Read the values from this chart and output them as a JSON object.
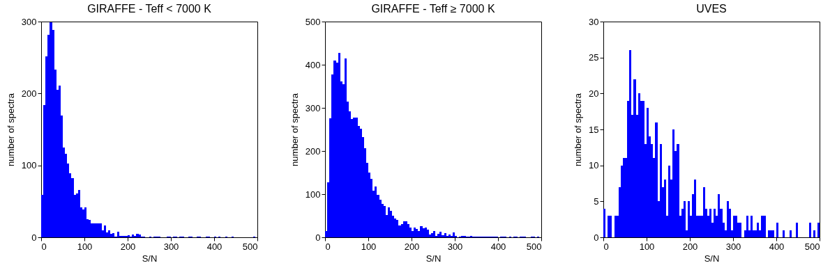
{
  "chart_data": [
    {
      "type": "histogram",
      "title": "GIRAFFE - Teff < 7000 K",
      "xlabel": "S/N",
      "ylabel": "number of spectra",
      "color": "#0000ff",
      "xlim": [
        0,
        500
      ],
      "xticks": [
        0,
        100,
        200,
        300,
        400,
        500
      ],
      "ylim": [
        0,
        300
      ],
      "yticks": [
        0,
        100,
        200,
        300
      ],
      "bins": [
        0,
        5,
        10,
        15,
        20,
        25,
        30,
        35,
        40,
        45,
        50,
        55,
        60,
        65,
        70,
        75,
        80,
        85,
        90,
        95,
        100,
        105,
        110,
        115,
        120,
        125,
        130,
        135,
        140,
        145,
        150,
        155,
        160,
        165,
        170,
        175,
        180,
        185,
        190,
        195,
        200,
        205,
        210,
        215,
        220,
        225,
        230,
        235,
        240,
        245,
        250,
        255,
        260,
        265,
        270,
        275,
        280,
        285,
        290,
        295,
        300,
        305,
        310,
        315,
        320,
        325,
        330,
        335,
        340,
        345,
        350,
        355,
        360,
        365,
        370,
        375,
        380,
        385,
        390,
        395,
        400,
        405,
        410,
        415,
        420,
        425,
        430,
        435,
        440,
        445,
        450,
        455,
        460,
        465,
        470,
        475,
        480,
        485,
        490,
        495,
        500
      ],
      "values": [
        59,
        184,
        252,
        282,
        299,
        288,
        233,
        205,
        211,
        169,
        125,
        116,
        103,
        89,
        82,
        59,
        61,
        66,
        42,
        39,
        42,
        25,
        24,
        19,
        19,
        19,
        19,
        19,
        10,
        16,
        7,
        10,
        5,
        6,
        1,
        8,
        2,
        2,
        2,
        2,
        3,
        1,
        4,
        2,
        5,
        4,
        1,
        1,
        0,
        0,
        1,
        0,
        1,
        1,
        1,
        0,
        0,
        0,
        1,
        1,
        0,
        1,
        1,
        0,
        1,
        1,
        0,
        0,
        1,
        1,
        0,
        0,
        1,
        1,
        0,
        0,
        1,
        1,
        0,
        0,
        1,
        0,
        1,
        0,
        0,
        1,
        0,
        0,
        1,
        0,
        0,
        0,
        0,
        0,
        0,
        0,
        0,
        0,
        1,
        0
      ]
    },
    {
      "type": "histogram",
      "title": "GIRAFFE - Teff ≥ 7000 K",
      "xlabel": "S/N",
      "ylabel": "number of spectra",
      "color": "#0000ff",
      "xlim": [
        0,
        500
      ],
      "xticks": [
        0,
        100,
        200,
        300,
        400,
        500
      ],
      "ylim": [
        0,
        500
      ],
      "yticks": [
        0,
        100,
        200,
        300,
        400,
        500
      ],
      "bins": [
        0,
        5,
        10,
        15,
        20,
        25,
        30,
        35,
        40,
        45,
        50,
        55,
        60,
        65,
        70,
        75,
        80,
        85,
        90,
        95,
        100,
        105,
        110,
        115,
        120,
        125,
        130,
        135,
        140,
        145,
        150,
        155,
        160,
        165,
        170,
        175,
        180,
        185,
        190,
        195,
        200,
        205,
        210,
        215,
        220,
        225,
        230,
        235,
        240,
        245,
        250,
        255,
        260,
        265,
        270,
        275,
        280,
        285,
        290,
        295,
        300,
        305,
        310,
        315,
        320,
        325,
        330,
        335,
        340,
        345,
        350,
        355,
        360,
        365,
        370,
        375,
        380,
        385,
        390,
        395,
        400,
        405,
        410,
        415,
        420,
        425,
        430,
        435,
        440,
        445,
        450,
        455,
        460,
        465,
        470,
        475,
        480,
        485,
        490,
        495,
        500
      ],
      "values": [
        15,
        127,
        276,
        377,
        409,
        405,
        427,
        361,
        355,
        415,
        315,
        292,
        275,
        278,
        278,
        258,
        252,
        233,
        206,
        172,
        150,
        135,
        108,
        117,
        99,
        87,
        78,
        72,
        52,
        70,
        61,
        50,
        44,
        41,
        28,
        31,
        37,
        37,
        31,
        23,
        15,
        23,
        20,
        14,
        26,
        21,
        23,
        17,
        6,
        10,
        14,
        4,
        8,
        13,
        5,
        9,
        4,
        6,
        4,
        11,
        4,
        0,
        2,
        3,
        3,
        1,
        2,
        3,
        2,
        2,
        1,
        2,
        1,
        1,
        2,
        2,
        1,
        1,
        1,
        2,
        0,
        1,
        1,
        1,
        0,
        1,
        0,
        1,
        1,
        0,
        1,
        1,
        1,
        0,
        0,
        1,
        1,
        0,
        1,
        0
      ]
    },
    {
      "type": "histogram",
      "title": "UVES",
      "xlabel": "S/N",
      "ylabel": "number of spectra",
      "color": "#0000ff",
      "xlim": [
        0,
        500
      ],
      "xticks": [
        0,
        100,
        200,
        300,
        400,
        500
      ],
      "ylim": [
        0,
        30
      ],
      "yticks": [
        0,
        5,
        10,
        15,
        20,
        25,
        30
      ],
      "bins": [
        0,
        5,
        10,
        15,
        20,
        25,
        30,
        35,
        40,
        45,
        50,
        55,
        60,
        65,
        70,
        75,
        80,
        85,
        90,
        95,
        100,
        105,
        110,
        115,
        120,
        125,
        130,
        135,
        140,
        145,
        150,
        155,
        160,
        165,
        170,
        175,
        180,
        185,
        190,
        195,
        200,
        205,
        210,
        215,
        220,
        225,
        230,
        235,
        240,
        245,
        250,
        255,
        260,
        265,
        270,
        275,
        280,
        285,
        290,
        295,
        300,
        305,
        310,
        315,
        320,
        325,
        330,
        335,
        340,
        345,
        350,
        355,
        360,
        365,
        370,
        375,
        380,
        385,
        390,
        395,
        400,
        405,
        410,
        415,
        420,
        425,
        430,
        435,
        440,
        445,
        450,
        455,
        460,
        465,
        470,
        475,
        480,
        485,
        490,
        495,
        500
      ],
      "values": [
        4,
        0,
        3,
        3,
        0,
        3,
        3,
        7,
        10,
        11,
        11,
        19,
        26,
        17,
        22,
        17,
        20,
        19,
        19,
        13,
        18,
        14,
        13,
        11,
        16,
        5,
        13,
        7,
        8,
        3,
        10,
        8,
        15,
        12,
        13,
        3,
        4,
        5,
        1,
        5,
        3,
        6,
        8,
        3,
        3,
        3,
        7,
        4,
        3,
        4,
        2,
        4,
        3,
        6,
        4,
        2,
        1,
        5,
        4,
        1,
        3,
        3,
        2,
        2,
        0,
        1,
        3,
        1,
        3,
        1,
        1,
        2,
        1,
        3,
        3,
        0,
        1,
        1,
        1,
        0,
        2,
        0,
        0,
        1,
        0,
        0,
        1,
        0,
        0,
        2,
        0,
        0,
        0,
        0,
        0,
        2,
        0,
        1,
        0,
        2
      ]
    }
  ]
}
